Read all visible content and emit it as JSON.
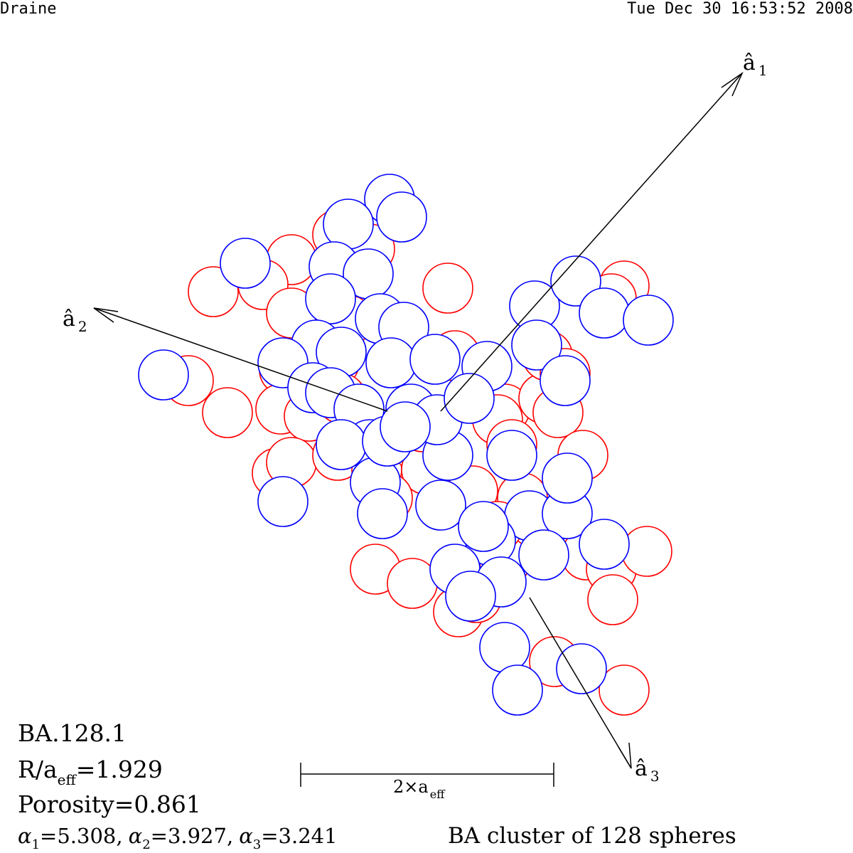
{
  "header": {
    "author": "Draine",
    "timestamp": "Tue Dec 30 16:53:52 2008"
  },
  "axes": {
    "a1": {
      "symbol": "â",
      "sub": "1"
    },
    "a2": {
      "symbol": "â",
      "sub": "2"
    },
    "a3": {
      "symbol": "â",
      "sub": "3"
    }
  },
  "scale_bar": {
    "prefix": "2×a",
    "sub": "eff"
  },
  "info": {
    "name": "BA.128.1",
    "radius_prefix": "R/a",
    "radius_sub": "eff",
    "radius_value": "=1.929",
    "porosity": "Porosity=0.861",
    "alpha_symbol": "α",
    "alpha1_sub": "1",
    "alpha1_value": "=5.308,",
    "alpha2_sub": "2",
    "alpha2_value": "=3.927,",
    "alpha3_sub": "3",
    "alpha3_value": "=3.241"
  },
  "caption": "BA cluster of 128 spheres",
  "colors": {
    "front": "#0000ff",
    "back": "#ff0000",
    "axis": "#000000"
  }
}
